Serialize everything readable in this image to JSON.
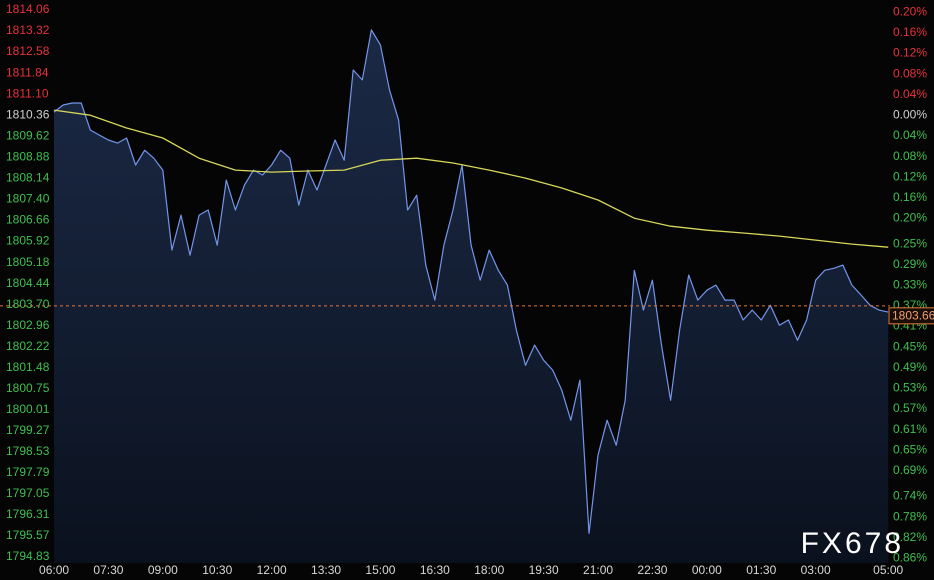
{
  "chart_data": {
    "type": "line",
    "watermark": "FX678",
    "background": "#050505",
    "up_color": "#e8323c",
    "down_color": "#3fbf4f",
    "flat_color": "#d0d0d0",
    "xlim": [
      -1.49,
      23.05
    ],
    "xticks": [
      {
        "value": 0,
        "label": "06:00"
      },
      {
        "value": 1.5,
        "label": "07:30"
      },
      {
        "value": 3,
        "label": "09:00"
      },
      {
        "value": 4.5,
        "label": "10:30"
      },
      {
        "value": 6,
        "label": "12:00"
      },
      {
        "value": 7.5,
        "label": "13:30"
      },
      {
        "value": 9,
        "label": "15:00"
      },
      {
        "value": 10.5,
        "label": "16:30"
      },
      {
        "value": 12,
        "label": "18:00"
      },
      {
        "value": 13.5,
        "label": "19:30"
      },
      {
        "value": 15,
        "label": "21:00"
      },
      {
        "value": 16.5,
        "label": "22:30"
      },
      {
        "value": 18,
        "label": "00:00"
      },
      {
        "value": 19.5,
        "label": "01:30"
      },
      {
        "value": 21,
        "label": "03:00"
      },
      {
        "value": 23,
        "label": "05:00"
      }
    ],
    "ylim": [
      1794.62,
      1814.41
    ],
    "yticks": [
      1814.06,
      1813.32,
      1812.58,
      1811.84,
      {
        "value": 1811.1,
        "label": "1811.10"
      },
      1810.36,
      1809.62,
      1808.88,
      1808.14,
      {
        "value": 1807.4,
        "label": "1807.40"
      },
      1806.66,
      1805.92,
      1805.18,
      1804.44,
      {
        "value": 1803.7,
        "label": "1803.70"
      },
      1802.96,
      1802.22,
      1801.48,
      1800.75,
      1800.01,
      1799.27,
      1798.53,
      1797.79,
      1797.05,
      1796.31,
      1795.57,
      1794.83
    ],
    "y2lim": [
      -0.869,
      0.224
    ],
    "y2ticks": [
      {
        "value": 0.2,
        "label": "0.20%"
      },
      {
        "value": 0.16,
        "label": "0.16%"
      },
      {
        "value": 0.12,
        "label": "0.12%"
      },
      {
        "value": 0.08,
        "label": "0.08%"
      },
      {
        "value": 0.04,
        "label": "0.04%"
      },
      {
        "value": 0,
        "label": "0.00%"
      },
      {
        "value": -0.04,
        "label": "0.04%"
      },
      {
        "value": -0.08,
        "label": "0.08%"
      },
      {
        "value": -0.12,
        "label": "0.12%"
      },
      {
        "value": -0.16,
        "label": "0.16%"
      },
      {
        "value": -0.2,
        "label": "0.20%"
      },
      {
        "value": -0.25,
        "label": "0.25%"
      },
      {
        "value": -0.29,
        "label": "0.29%"
      },
      {
        "value": -0.33,
        "label": "0.33%"
      },
      {
        "value": -0.37,
        "label": "0.37%"
      },
      {
        "value": -0.41,
        "label": "0.41%"
      },
      {
        "value": -0.45,
        "label": "0.45%"
      },
      {
        "value": -0.49,
        "label": "0.49%"
      },
      {
        "value": -0.53,
        "label": "0.53%"
      },
      {
        "value": -0.57,
        "label": "0.57%"
      },
      {
        "value": -0.61,
        "label": "0.61%"
      },
      {
        "value": -0.65,
        "label": "0.65%"
      },
      {
        "value": -0.69,
        "label": "0.69%"
      },
      {
        "value": -0.74,
        "label": "0.74%"
      },
      {
        "value": -0.78,
        "label": "0.78%"
      },
      {
        "value": -0.82,
        "label": "0.82%"
      },
      {
        "value": -0.86,
        "label": "0.86%"
      }
    ],
    "last_price": 1803.66,
    "last_price_color": "#e07a3a",
    "series": [
      {
        "color": "#7396ea",
        "x": [
          0,
          0.25,
          0.5,
          0.75,
          1,
          1.25,
          1.5,
          1.75,
          2,
          2.25,
          2.5,
          2.75,
          3,
          3.25,
          3.5,
          3.75,
          4,
          4.25,
          4.5,
          4.75,
          5,
          5.25,
          5.5,
          5.75,
          6,
          6.25,
          6.5,
          6.75,
          7,
          7.25,
          7.5,
          7.75,
          8,
          8.25,
          8.5,
          8.75,
          9,
          9.25,
          9.5,
          9.75,
          10,
          10.25,
          10.5,
          10.75,
          11,
          11.25,
          11.5,
          11.75,
          12,
          12.25,
          12.5,
          12.75,
          13,
          13.25,
          13.5,
          13.75,
          14,
          14.25,
          14.5,
          14.75,
          15,
          15.25,
          15.5,
          15.75,
          16,
          16.25,
          16.5,
          16.75,
          17,
          17.25,
          17.5,
          17.75,
          18,
          18.25,
          18.5,
          18.75,
          19,
          19.25,
          19.5,
          19.75,
          20,
          20.25,
          20.5,
          20.75,
          21,
          21.25,
          21.5,
          21.75,
          22,
          22.25,
          22.5,
          22.75,
          23
        ],
        "values": [
          1810.47,
          1810.72,
          1810.79,
          1810.79,
          1809.84,
          1809.66,
          1809.49,
          1809.38,
          1809.56,
          1808.61,
          1809.13,
          1808.85,
          1808.43,
          1805.62,
          1806.85,
          1805.44,
          1806.85,
          1807.03,
          1805.79,
          1808.08,
          1807.03,
          1807.9,
          1808.43,
          1808.26,
          1808.61,
          1809.13,
          1808.85,
          1807.2,
          1808.43,
          1807.73,
          1808.61,
          1809.49,
          1808.78,
          1811.95,
          1811.6,
          1813.36,
          1812.83,
          1811.25,
          1810.19,
          1807.03,
          1807.55,
          1805.09,
          1803.86,
          1805.79,
          1807.03,
          1808.61,
          1805.79,
          1804.56,
          1805.62,
          1804.91,
          1804.39,
          1802.8,
          1801.57,
          1802.28,
          1801.75,
          1801.4,
          1800.69,
          1799.64,
          1801.05,
          1795.66,
          1798.41,
          1799.64,
          1798.76,
          1800.34,
          1804.91,
          1803.51,
          1804.56,
          1802.28,
          1800.34,
          1802.8,
          1804.74,
          1803.86,
          1804.21,
          1804.39,
          1803.86,
          1803.86,
          1803.16,
          1803.51,
          1803.16,
          1803.68,
          1802.98,
          1803.16,
          1802.45,
          1803.16,
          1804.56,
          1804.91,
          1804.98,
          1805.09,
          1804.39,
          1804.04,
          1803.68,
          1803.51,
          1803.44
        ]
      },
      {
        "color": "#d6d65a",
        "x": [
          0,
          1,
          2,
          3,
          4,
          5,
          6,
          7,
          8,
          9,
          10,
          11,
          12,
          13,
          14,
          15,
          16,
          17,
          18,
          19,
          20,
          21,
          22,
          23
        ],
        "values": [
          1810.54,
          1810.36,
          1809.91,
          1809.56,
          1808.85,
          1808.43,
          1808.36,
          1808.4,
          1808.43,
          1808.78,
          1808.85,
          1808.68,
          1808.43,
          1808.15,
          1807.8,
          1807.38,
          1806.74,
          1806.46,
          1806.32,
          1806.22,
          1806.11,
          1805.97,
          1805.83,
          1805.72
        ]
      }
    ]
  }
}
